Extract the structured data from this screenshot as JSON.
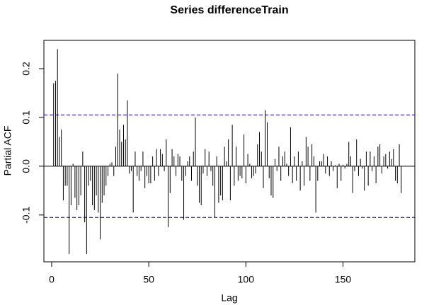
{
  "chart_data": {
    "type": "pacf",
    "title": "Series  differenceTrain",
    "xlabel": "Lag",
    "ylabel": "Partial ACF",
    "x": [
      1,
      2,
      3,
      4,
      5,
      6,
      7,
      8,
      9,
      10,
      11,
      12,
      13,
      14,
      15,
      16,
      17,
      18,
      19,
      20,
      21,
      22,
      23,
      24,
      25,
      26,
      27,
      28,
      29,
      30,
      31,
      32,
      33,
      34,
      35,
      36,
      37,
      38,
      39,
      40,
      41,
      42,
      43,
      44,
      45,
      46,
      47,
      48,
      49,
      50,
      51,
      52,
      53,
      54,
      55,
      56,
      57,
      58,
      59,
      60,
      61,
      62,
      63,
      64,
      65,
      66,
      67,
      68,
      69,
      70,
      71,
      72,
      73,
      74,
      75,
      76,
      77,
      78,
      79,
      80,
      81,
      82,
      83,
      84,
      85,
      86,
      87,
      88,
      89,
      90,
      91,
      92,
      93,
      94,
      95,
      96,
      97,
      98,
      99,
      100,
      101,
      102,
      103,
      104,
      105,
      106,
      107,
      108,
      109,
      110,
      111,
      112,
      113,
      114,
      115,
      116,
      117,
      118,
      119,
      120,
      121,
      122,
      123,
      124,
      125,
      126,
      127,
      128,
      129,
      130,
      131,
      132,
      133,
      134,
      135,
      136,
      137,
      138,
      139,
      140,
      141,
      142,
      143,
      144,
      145,
      146,
      147,
      148,
      149,
      150,
      151,
      152,
      153,
      154,
      155,
      156,
      157,
      158,
      159,
      160,
      161,
      162,
      163,
      164,
      165,
      166,
      167,
      168,
      169,
      170,
      171,
      172,
      173,
      174,
      175,
      176,
      177,
      178,
      179,
      180
    ],
    "values": [
      0.17,
      0.175,
      0.24,
      0.06,
      0.075,
      -0.07,
      -0.04,
      -0.04,
      -0.18,
      -0.08,
      0.005,
      -0.065,
      -0.09,
      -0.08,
      -0.06,
      0.03,
      -0.115,
      -0.18,
      -0.04,
      -0.03,
      -0.08,
      -0.09,
      -0.06,
      -0.095,
      -0.15,
      -0.075,
      -0.06,
      -0.04,
      -0.02,
      0.005,
      0.008,
      -0.02,
      0.04,
      0.19,
      0.075,
      0.05,
      0.085,
      0.055,
      0.135,
      -0.015,
      -0.01,
      -0.095,
      0.03,
      -0.02,
      -0.03,
      -0.01,
      0.03,
      -0.045,
      -0.02,
      -0.035,
      -0.035,
      0.02,
      -0.03,
      0.035,
      -0.02,
      0.035,
      0.025,
      -0.01,
      0.055,
      -0.125,
      -0.055,
      0.035,
      0.02,
      -0.02,
      0.025,
      0.02,
      -0.03,
      -0.11,
      -0.02,
      0.01,
      0.02,
      -0.03,
      0.03,
      0.1,
      -0.04,
      -0.075,
      -0.08,
      -0.015,
      0.035,
      -0.02,
      0.03,
      -0.01,
      -0.04,
      -0.105,
      0.02,
      -0.075,
      -0.06,
      -0.07,
      0.04,
      0.01,
      0.055,
      -0.07,
      0.085,
      -0.04,
      0.04,
      -0.03,
      -0.02,
      -0.025,
      0.065,
      -0.035,
      0.025,
      0.005,
      -0.025,
      -0.02,
      -0.015,
      0.045,
      0.07,
      0.03,
      -0.045,
      0.115,
      0.09,
      -0.025,
      -0.06,
      -0.065,
      0.015,
      -0.01,
      0.04,
      -0.03,
      0.02,
      0.03,
      0.005,
      -0.02,
      0.08,
      -0.035,
      0.02,
      -0.03,
      0.03,
      -0.05,
      0.01,
      -0.04,
      0.06,
      0.04,
      -0.03,
      0.045,
      0.02,
      -0.095,
      -0.03,
      0.01,
      0.01,
      0.025,
      -0.015,
      0.02,
      -0.02,
      0.01,
      -0.01,
      0.002,
      -0.045,
      0.005,
      -0.03,
      0.003,
      -0.005,
      0.005,
      0.05,
      0.02,
      -0.055,
      -0.01,
      0.055,
      -0.02,
      0.015,
      -0.005,
      -0.05,
      0.03,
      -0.04,
      0.03,
      -0.01,
      0.02,
      -0.035,
      0.04,
      0.045,
      -0.015,
      0.02,
      0.025,
      -0.005,
      0.03,
      0.015,
      0.035,
      -0.03,
      -0.035,
      0.045,
      -0.055
    ],
    "color": "#000000",
    "ci": 0.105,
    "ci_color": "#00008b",
    "xlim": [
      -4,
      187
    ],
    "ylim": [
      -0.196,
      0.258
    ],
    "xticks": [
      0,
      50,
      100,
      150
    ],
    "yticks": [
      -0.1,
      {
        "value": 0,
        "label": "0.0"
      },
      0.1,
      0.2
    ]
  }
}
